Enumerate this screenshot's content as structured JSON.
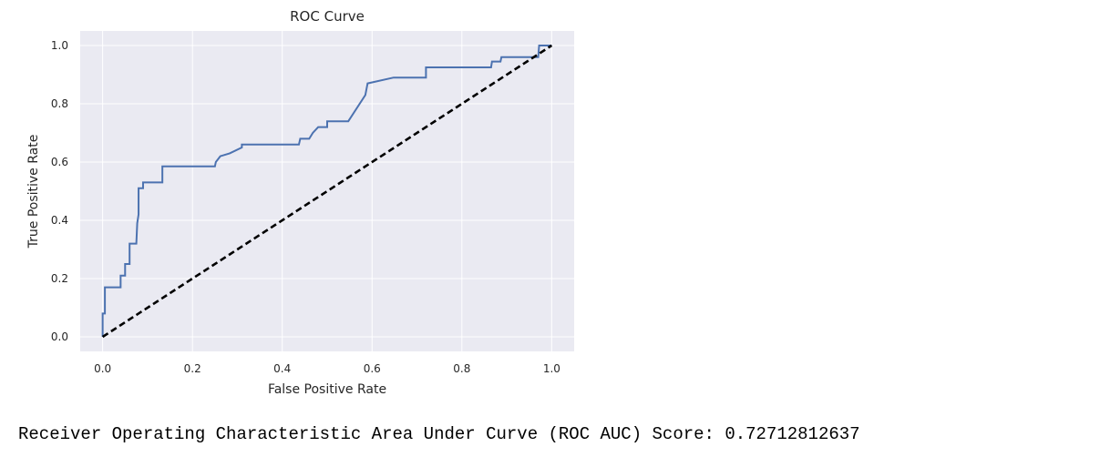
{
  "chart_data": {
    "type": "line",
    "title": "ROC Curve",
    "xlabel": "False Positive Rate",
    "ylabel": "True Positive Rate",
    "xlim": [
      -0.05,
      1.05
    ],
    "ylim": [
      -0.05,
      1.05
    ],
    "xticks": [
      0.0,
      0.2,
      0.4,
      0.6,
      0.8,
      1.0
    ],
    "yticks": [
      0.0,
      0.2,
      0.4,
      0.6,
      0.8,
      1.0
    ],
    "xtick_labels": [
      "0.0",
      "0.2",
      "0.4",
      "0.6",
      "0.8",
      "1.0"
    ],
    "ytick_labels": [
      "0.0",
      "0.2",
      "0.4",
      "0.6",
      "0.8",
      "1.0"
    ],
    "grid": true,
    "legend": "none",
    "series": [
      {
        "style": "solid",
        "color": "#4c72b0",
        "x": [
          0.0,
          0.0,
          0.005,
          0.005,
          0.04,
          0.04,
          0.05,
          0.05,
          0.06,
          0.06,
          0.075,
          0.077,
          0.08,
          0.08,
          0.09,
          0.09,
          0.133,
          0.133,
          0.25,
          0.252,
          0.262,
          0.283,
          0.31,
          0.31,
          0.437,
          0.44,
          0.46,
          0.468,
          0.48,
          0.5,
          0.5,
          0.547,
          0.585,
          0.59,
          0.648,
          0.72,
          0.72,
          0.865,
          0.867,
          0.886,
          0.888,
          0.97,
          0.972,
          1.0
        ],
        "y": [
          0.0,
          0.08,
          0.08,
          0.17,
          0.17,
          0.21,
          0.21,
          0.25,
          0.25,
          0.32,
          0.32,
          0.39,
          0.42,
          0.51,
          0.51,
          0.53,
          0.53,
          0.585,
          0.585,
          0.6,
          0.62,
          0.63,
          0.65,
          0.66,
          0.66,
          0.68,
          0.68,
          0.7,
          0.72,
          0.72,
          0.74,
          0.74,
          0.83,
          0.87,
          0.89,
          0.89,
          0.925,
          0.925,
          0.945,
          0.945,
          0.96,
          0.96,
          1.0,
          1.0
        ]
      },
      {
        "style": "dashed",
        "color": "#000000",
        "x": [
          0.0,
          1.0
        ],
        "y": [
          0.0,
          1.0
        ]
      }
    ]
  },
  "output": {
    "score_text": "Receiver Operating Characteristic Area Under Curve (ROC AUC) Score: 0.72712812637"
  }
}
